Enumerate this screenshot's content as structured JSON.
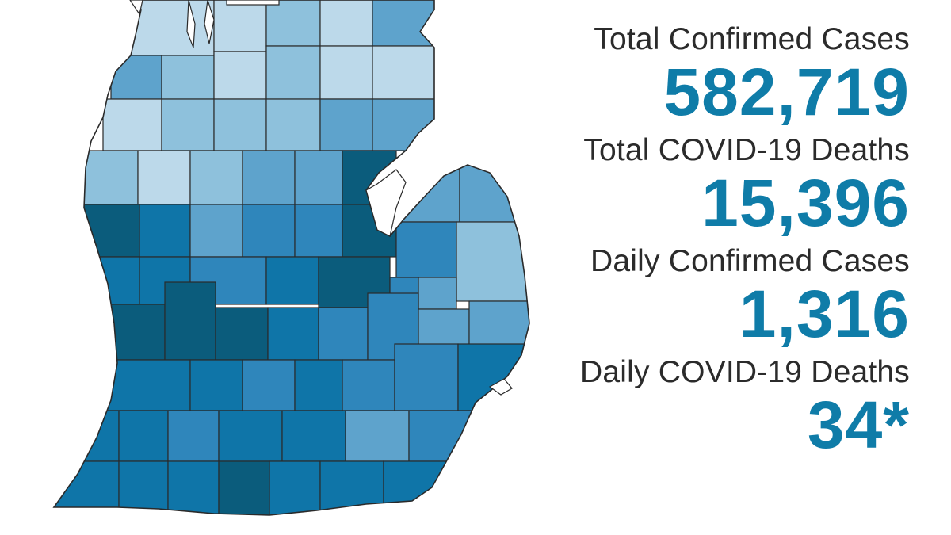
{
  "colors": {
    "accent": "#0f7ca8",
    "label_text": "#2b2b2b",
    "background": "#ffffff",
    "county_scale": [
      "#bcd9ea",
      "#8ec1dc",
      "#5ea3cc",
      "#2f86bb",
      "#0f75a8",
      "#0b5c7c"
    ]
  },
  "stats": [
    {
      "label": "Total Confirmed Cases",
      "value": "582,719"
    },
    {
      "label": "Total COVID-19 Deaths",
      "value": "15,396"
    },
    {
      "label": "Daily Confirmed Cases",
      "value": "1,316"
    },
    {
      "label": "Daily COVID-19 Deaths",
      "value": "34*"
    }
  ],
  "map": {
    "region": "Michigan lower peninsula counties",
    "legend": []
  }
}
